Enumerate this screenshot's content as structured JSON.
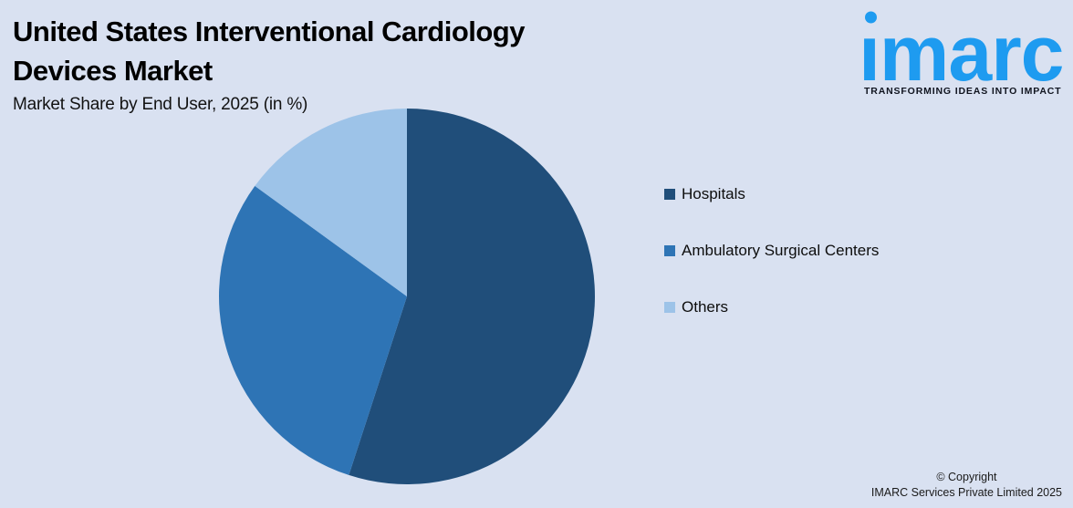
{
  "background_color": "#D9E1F1",
  "header": {
    "title_line1": "United States Interventional Cardiology",
    "title_line2": "Devices Market",
    "subtitle": "Market Share by End User, 2025 (in %)"
  },
  "logo": {
    "wordmark": "imarc",
    "tagline": "TRANSFORMING IDEAS INTO IMPACT",
    "brand_blue": "#1E9BF0"
  },
  "chart_data": {
    "type": "pie",
    "title": "United States Interventional Cardiology Devices Market",
    "subtitle": "Market Share by End User, 2025 (in %)",
    "categories": [
      "Hospitals",
      "Ambulatory Surgical Centers",
      "Others"
    ],
    "values": [
      55,
      30,
      15
    ],
    "unit": "%",
    "colors": [
      "#204E7A",
      "#2E74B5",
      "#9DC3E8"
    ],
    "start_angle_deg": 0,
    "direction": "clockwise",
    "legend_position": "right",
    "data_labels_shown": false
  },
  "legend": {
    "items": [
      {
        "label": "Hospitals",
        "color": "#204E7A"
      },
      {
        "label": "Ambulatory Surgical Centers",
        "color": "#2E74B5"
      },
      {
        "label": "Others",
        "color": "#9DC3E8"
      }
    ]
  },
  "footer": {
    "copyright_line1": "© Copyright",
    "copyright_line2": "IMARC Services Private Limited 2025"
  }
}
